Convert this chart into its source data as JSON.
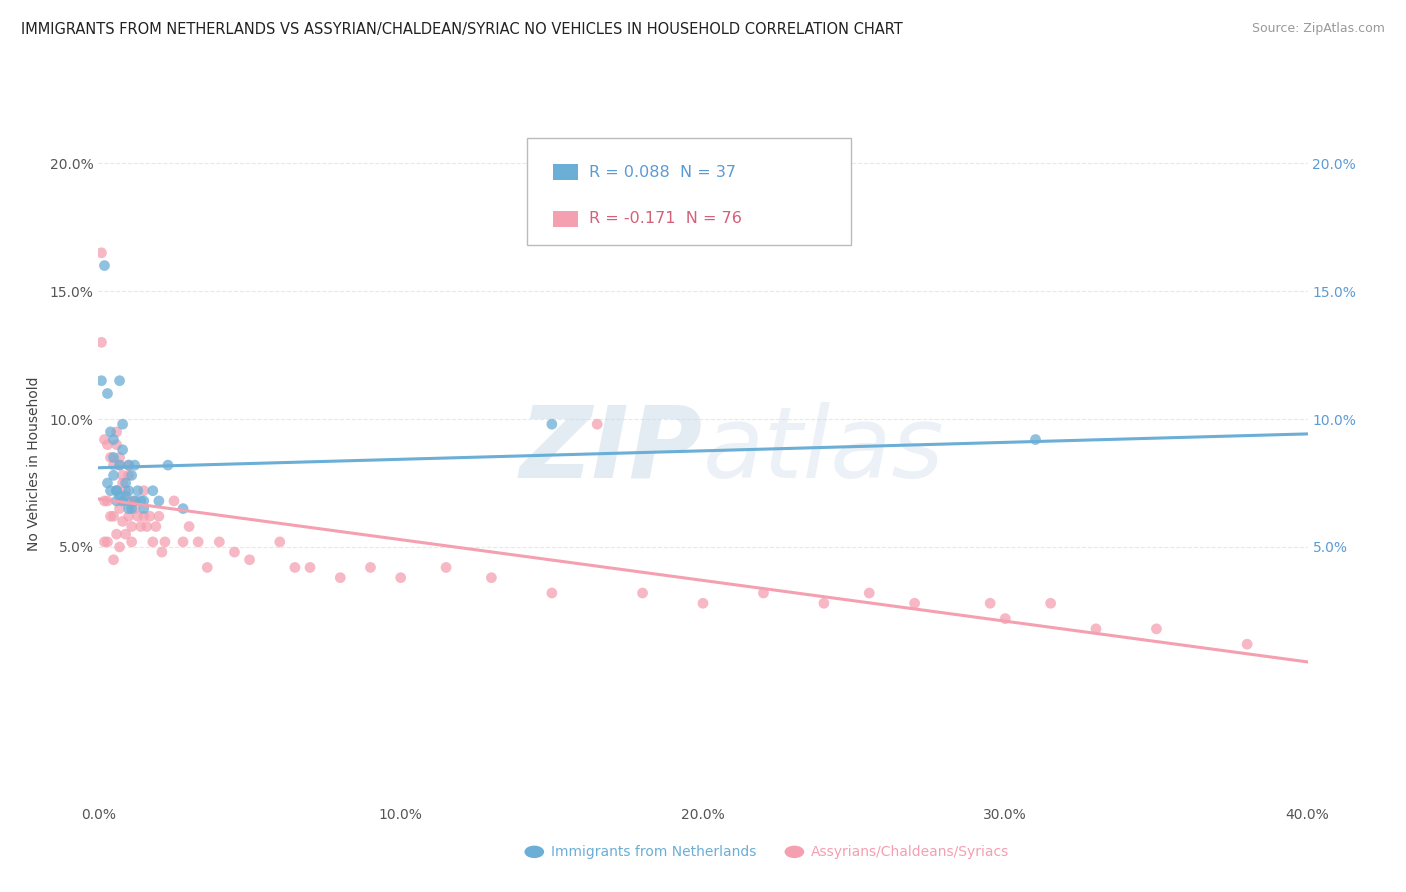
{
  "title": "IMMIGRANTS FROM NETHERLANDS VS ASSYRIAN/CHALDEAN/SYRIAC NO VEHICLES IN HOUSEHOLD CORRELATION CHART",
  "source": "Source: ZipAtlas.com",
  "ylabel": "No Vehicles in Household",
  "xlim": [
    0.0,
    0.4
  ],
  "ylim": [
    -0.05,
    0.215
  ],
  "xtick_labels": [
    "0.0%",
    "10.0%",
    "20.0%",
    "30.0%",
    "40.0%"
  ],
  "xtick_values": [
    0.0,
    0.1,
    0.2,
    0.3,
    0.4
  ],
  "ytick_labels": [
    "5.0%",
    "10.0%",
    "15.0%",
    "20.0%"
  ],
  "ytick_values": [
    0.05,
    0.1,
    0.15,
    0.2
  ],
  "watermark_text": "ZIPatlas",
  "series1_color": "#6baed6",
  "series2_color": "#f4a0b0",
  "series1_R": 0.088,
  "series1_N": 37,
  "series2_R": -0.171,
  "series2_N": 76,
  "series1_label": "Immigrants from Netherlands",
  "series2_label": "Assyrians/Chaldeans/Syriacs",
  "series1_x": [
    0.001,
    0.002,
    0.003,
    0.003,
    0.004,
    0.004,
    0.005,
    0.005,
    0.005,
    0.006,
    0.006,
    0.007,
    0.007,
    0.008,
    0.008,
    0.009,
    0.009,
    0.01,
    0.01,
    0.01,
    0.011,
    0.011,
    0.012,
    0.013,
    0.014,
    0.015,
    0.018,
    0.02,
    0.023,
    0.028,
    0.15,
    0.015,
    0.007,
    0.012,
    0.006,
    0.008,
    0.31
  ],
  "series1_y": [
    0.115,
    0.16,
    0.11,
    0.075,
    0.095,
    0.072,
    0.085,
    0.078,
    0.092,
    0.072,
    0.068,
    0.082,
    0.07,
    0.088,
    0.068,
    0.075,
    0.07,
    0.082,
    0.072,
    0.065,
    0.078,
    0.065,
    0.068,
    0.072,
    0.068,
    0.065,
    0.072,
    0.068,
    0.082,
    0.065,
    0.098,
    0.068,
    0.115,
    0.082,
    0.072,
    0.098,
    0.092
  ],
  "series2_x": [
    0.001,
    0.001,
    0.002,
    0.002,
    0.002,
    0.003,
    0.003,
    0.003,
    0.004,
    0.004,
    0.005,
    0.005,
    0.005,
    0.006,
    0.006,
    0.006,
    0.007,
    0.007,
    0.007,
    0.008,
    0.008,
    0.009,
    0.009,
    0.01,
    0.01,
    0.011,
    0.011,
    0.012,
    0.013,
    0.014,
    0.015,
    0.016,
    0.017,
    0.018,
    0.019,
    0.02,
    0.021,
    0.022,
    0.025,
    0.028,
    0.03,
    0.033,
    0.036,
    0.04,
    0.045,
    0.05,
    0.06,
    0.065,
    0.07,
    0.08,
    0.09,
    0.1,
    0.115,
    0.13,
    0.15,
    0.165,
    0.18,
    0.2,
    0.22,
    0.24,
    0.255,
    0.27,
    0.295,
    0.3,
    0.315,
    0.33,
    0.35,
    0.38,
    0.01,
    0.012,
    0.015,
    0.008,
    0.006,
    0.009,
    0.011,
    0.007
  ],
  "series2_y": [
    0.165,
    0.13,
    0.092,
    0.068,
    0.052,
    0.09,
    0.068,
    0.052,
    0.085,
    0.062,
    0.082,
    0.062,
    0.045,
    0.09,
    0.072,
    0.055,
    0.082,
    0.065,
    0.05,
    0.078,
    0.06,
    0.072,
    0.055,
    0.078,
    0.062,
    0.068,
    0.052,
    0.068,
    0.062,
    0.058,
    0.062,
    0.058,
    0.062,
    0.052,
    0.058,
    0.062,
    0.048,
    0.052,
    0.068,
    0.052,
    0.058,
    0.052,
    0.042,
    0.052,
    0.048,
    0.045,
    0.052,
    0.042,
    0.042,
    0.038,
    0.042,
    0.038,
    0.042,
    0.038,
    0.032,
    0.098,
    0.032,
    0.028,
    0.032,
    0.028,
    0.032,
    0.028,
    0.028,
    0.022,
    0.028,
    0.018,
    0.018,
    0.012,
    0.082,
    0.065,
    0.072,
    0.075,
    0.095,
    0.068,
    0.058,
    0.085
  ],
  "background_color": "#ffffff",
  "grid_color": "#e8e8e8",
  "title_fontsize": 10.5,
  "tick_fontsize": 10,
  "legend_fontsize": 11.5
}
